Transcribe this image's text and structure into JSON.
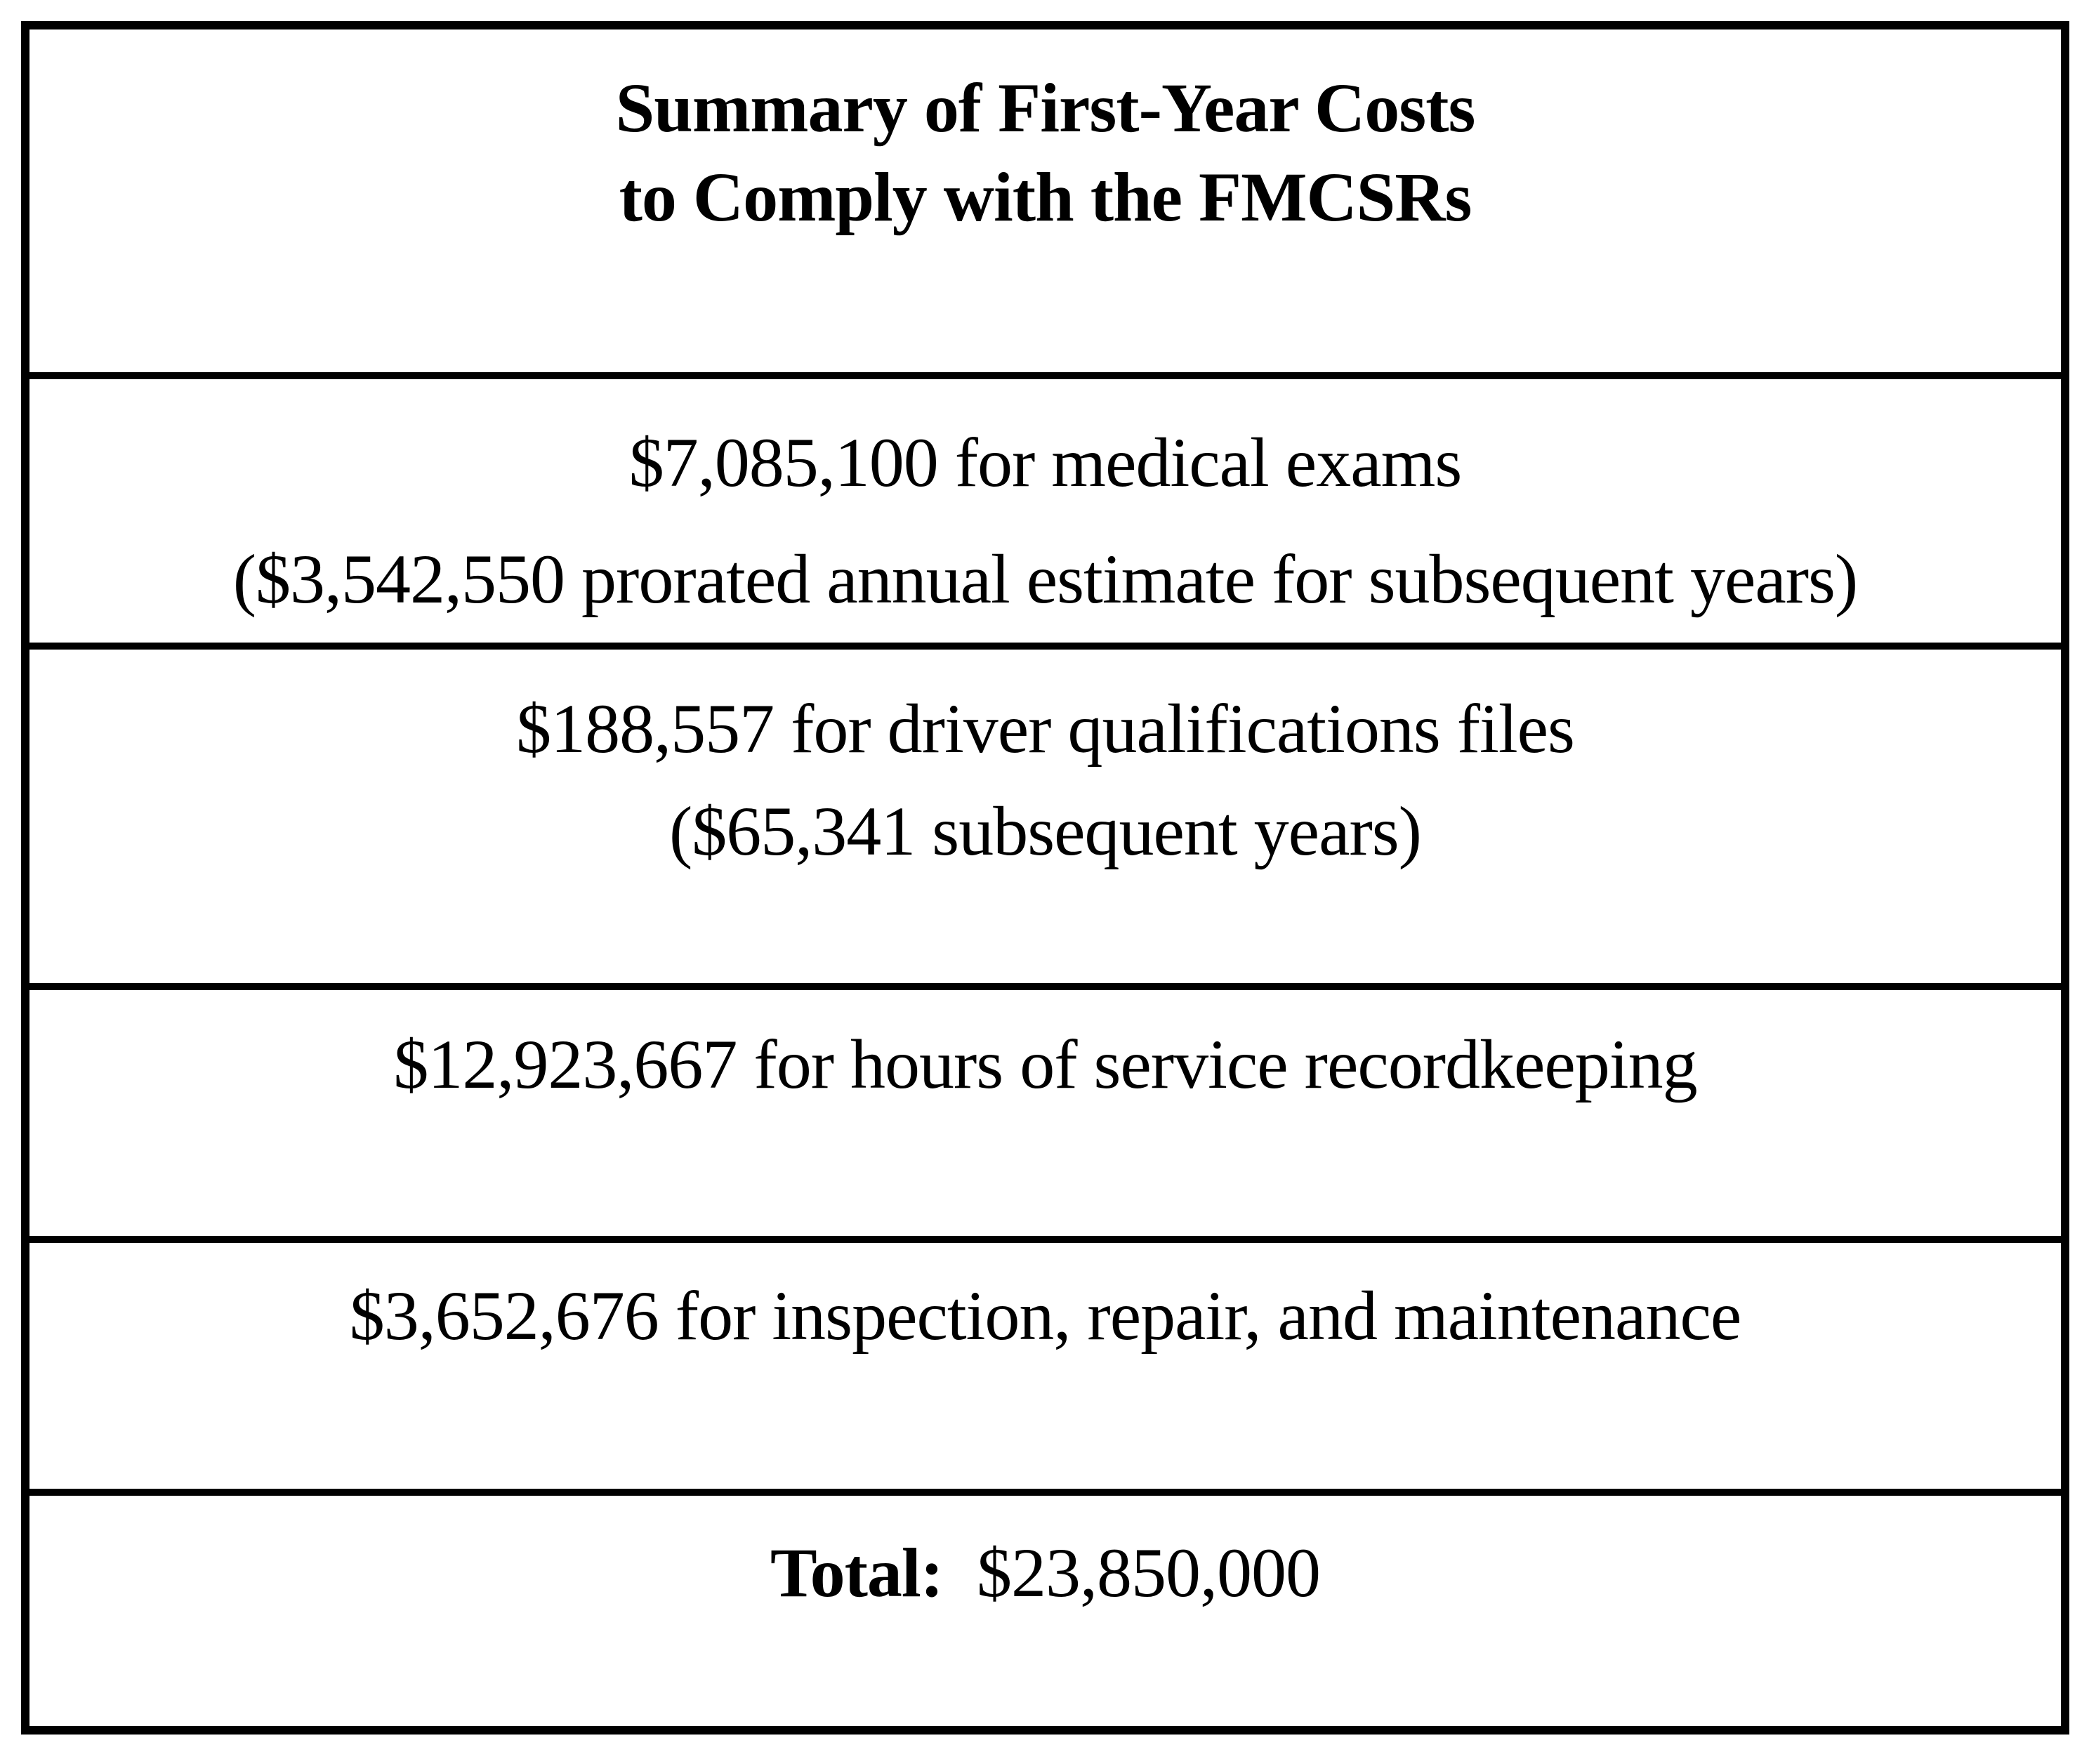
{
  "doc": {
    "title": {
      "line1": "Summary of First-Year Costs",
      "line2": "to Comply with the FMCSRs"
    },
    "rows": [
      {
        "line1": "$7,085,100 for medical exams",
        "line2": "($3,542,550 prorated annual estimate for subsequent years)"
      },
      {
        "line1": "$188,557 for driver qualifications files",
        "line2": "($65,341 subsequent years)"
      },
      {
        "line1": "$12,923,667 for hours of service recordkeeping"
      },
      {
        "line1": "$3,652,676 for inspection, repair, and maintenance"
      }
    ],
    "total": {
      "label": "Total:",
      "amount": "$23,850,000"
    }
  },
  "colors": {
    "ink": "#000000",
    "paper": "#ffffff"
  }
}
